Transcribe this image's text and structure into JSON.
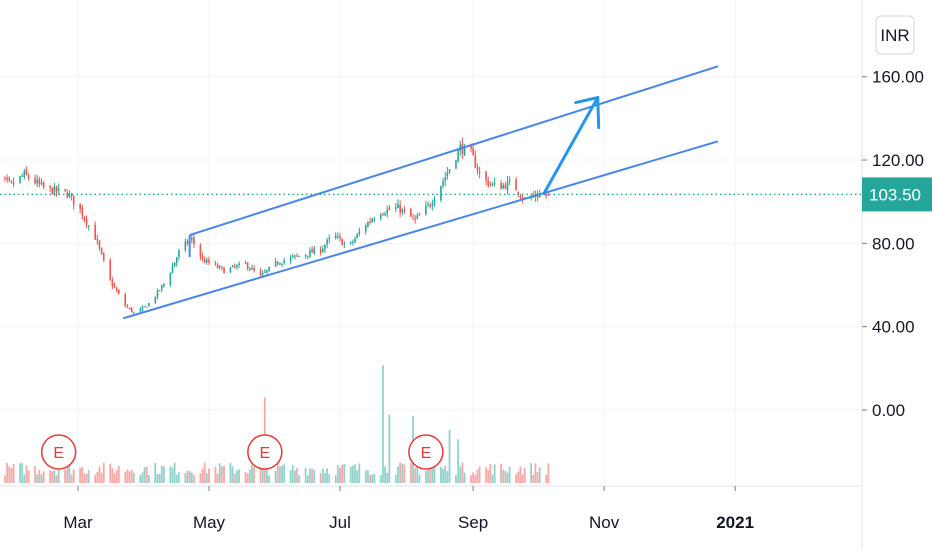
{
  "currency_button": "INR",
  "price_axis": {
    "ticks": [
      {
        "value": 160,
        "label": "160.00"
      },
      {
        "value": 120,
        "label": "120.00"
      },
      {
        "value": 80,
        "label": "80.00"
      },
      {
        "value": 40,
        "label": "40.00"
      }
    ],
    "volume_zero_label": "0.00"
  },
  "current_price": {
    "value": 103.5,
    "label": "103.50"
  },
  "colors": {
    "up": "#26a69a",
    "down": "#ef5350",
    "channel": "#4a86e8",
    "arrow": "#2196f3",
    "current_price_bg": "#26a69a",
    "earnings": "#e53935"
  },
  "time_axis": {
    "labels": [
      {
        "label": "Mar",
        "date": "2020-03-01",
        "bold": false
      },
      {
        "label": "May",
        "date": "2020-05-01",
        "bold": false
      },
      {
        "label": "Jul",
        "date": "2020-07-01",
        "bold": false
      },
      {
        "label": "Sep",
        "date": "2020-09-01",
        "bold": false
      },
      {
        "label": "Nov",
        "date": "2020-11-01",
        "bold": false
      },
      {
        "label": "2021",
        "date": "2021-01-01",
        "bold": true
      }
    ]
  },
  "earnings_markers": [
    {
      "label": "E",
      "date": "2020-02-21"
    },
    {
      "label": "E",
      "date": "2020-05-27"
    },
    {
      "label": "E",
      "date": "2020-08-10"
    }
  ],
  "chart_data": {
    "type": "candlestick",
    "title": "",
    "xlabel": "",
    "ylabel": "",
    "ylim": [
      20,
      170
    ],
    "grid": true,
    "current_price": 103.5,
    "anchors": [
      {
        "date": "2020-01-20",
        "close": 112
      },
      {
        "date": "2020-01-30",
        "close": 108
      },
      {
        "date": "2020-02-05",
        "close": 113
      },
      {
        "date": "2020-02-15",
        "close": 106
      },
      {
        "date": "2020-02-25",
        "close": 104
      },
      {
        "date": "2020-03-02",
        "close": 96
      },
      {
        "date": "2020-03-09",
        "close": 83
      },
      {
        "date": "2020-03-16",
        "close": 62
      },
      {
        "date": "2020-03-23",
        "close": 50
      },
      {
        "date": "2020-03-28",
        "close": 46
      },
      {
        "date": "2020-04-04",
        "close": 52
      },
      {
        "date": "2020-04-11",
        "close": 62
      },
      {
        "date": "2020-04-18",
        "close": 78
      },
      {
        "date": "2020-04-23",
        "close": 82
      },
      {
        "date": "2020-04-28",
        "close": 72
      },
      {
        "date": "2020-05-08",
        "close": 67
      },
      {
        "date": "2020-05-18",
        "close": 70
      },
      {
        "date": "2020-05-25",
        "close": 64
      },
      {
        "date": "2020-06-02",
        "close": 71
      },
      {
        "date": "2020-06-12",
        "close": 74
      },
      {
        "date": "2020-06-22",
        "close": 77
      },
      {
        "date": "2020-06-28",
        "close": 84
      },
      {
        "date": "2020-07-05",
        "close": 78
      },
      {
        "date": "2020-07-12",
        "close": 88
      },
      {
        "date": "2020-07-19",
        "close": 95
      },
      {
        "date": "2020-07-28",
        "close": 97
      },
      {
        "date": "2020-08-05",
        "close": 91
      },
      {
        "date": "2020-08-12",
        "close": 99
      },
      {
        "date": "2020-08-20",
        "close": 114
      },
      {
        "date": "2020-08-26",
        "close": 126
      },
      {
        "date": "2020-08-31",
        "close": 123
      },
      {
        "date": "2020-09-05",
        "close": 111
      },
      {
        "date": "2020-09-12",
        "close": 107
      },
      {
        "date": "2020-09-19",
        "close": 109
      },
      {
        "date": "2020-09-25",
        "close": 101
      },
      {
        "date": "2020-09-30",
        "close": 103
      },
      {
        "date": "2020-10-06",
        "close": 103.5
      }
    ],
    "volume_spikes": [
      {
        "date": "2020-05-27",
        "volume": 0.45,
        "direction": "down"
      },
      {
        "date": "2020-07-21",
        "volume": 0.62,
        "direction": "up"
      },
      {
        "date": "2020-07-24",
        "volume": 0.36,
        "direction": "up"
      },
      {
        "date": "2020-08-04",
        "volume": 0.35,
        "direction": "up"
      },
      {
        "date": "2020-08-25",
        "volume": 0.23,
        "direction": "up"
      },
      {
        "date": "2020-08-21",
        "volume": 0.28,
        "direction": "up"
      }
    ],
    "drawings": [
      {
        "type": "trend_line",
        "name": "channel-upper",
        "from": {
          "date": "2020-04-22",
          "price": 84
        },
        "to": {
          "date": "2020-12-24",
          "price": 165
        }
      },
      {
        "type": "trend_line",
        "name": "channel-lower",
        "from": {
          "date": "2020-03-22",
          "price": 44
        },
        "to": {
          "date": "2020-12-24",
          "price": 129
        }
      },
      {
        "type": "arrow",
        "name": "projection-arrow",
        "from": {
          "date": "2020-10-04",
          "price": 104
        },
        "to": {
          "date": "2020-10-29",
          "price": 150
        }
      }
    ]
  }
}
